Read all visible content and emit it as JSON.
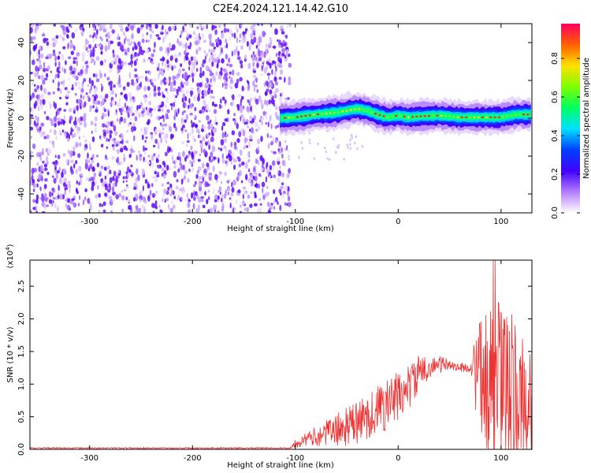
{
  "title": "C2E4.2024.121.14.42.G10",
  "chart_data": [
    {
      "type": "heatmap",
      "xlabel": "Height of straight line (km)",
      "ylabel": "Frequency (Hz)",
      "xlim": [
        -358,
        130
      ],
      "ylim": [
        -50,
        50
      ],
      "x_ticks": [
        -300,
        -200,
        -100,
        0,
        100
      ],
      "y_ticks": [
        -40,
        -20,
        0,
        20,
        40
      ],
      "colorbar": {
        "label": "Normalized spectral amplitude",
        "range": [
          0,
          0.98
        ],
        "ticks": [
          "0.0",
          "0.2",
          "0.4",
          "0.6",
          "0.8"
        ],
        "tick_values": [
          0.0,
          0.2,
          0.4,
          0.6,
          0.8
        ],
        "colormap": [
          "#ffffff",
          "#b57cff",
          "#4000ff",
          "#0040ff",
          "#00e0ff",
          "#00ff60",
          "#7fff00",
          "#ffe000",
          "#ff6000",
          "#ff0060"
        ]
      },
      "noise_region_x": [
        -358,
        -105
      ],
      "ridge": {
        "x": [
          -115,
          -100,
          -80,
          -60,
          -40,
          -30,
          -20,
          -10,
          0,
          10,
          20,
          40,
          60,
          80,
          100,
          115,
          130
        ],
        "frequency_hz": [
          0,
          0.5,
          2,
          3,
          5,
          4,
          2,
          0.5,
          1.5,
          0.5,
          1,
          1.5,
          0.5,
          0.5,
          0.5,
          2,
          2
        ]
      },
      "grid": false
    },
    {
      "type": "line",
      "xlabel": "Height of straight line (km)",
      "ylabel": "SNR (10 * v/v)",
      "y_multiplier_label": "(x10",
      "y_multiplier_exp": "4",
      "y_multiplier_close": ")",
      "xlim": [
        -358,
        130
      ],
      "ylim": [
        0,
        2.9
      ],
      "x_ticks": [
        -300,
        -200,
        -100,
        0,
        100
      ],
      "y_ticks": [
        "0.0",
        "0.5",
        "1.0",
        "1.5",
        "2.0",
        "2.5"
      ],
      "y_tick_values": [
        0,
        0.5,
        1.0,
        1.5,
        2.0,
        2.5
      ],
      "series": [
        {
          "color": "#ee3333",
          "x": [
            -358,
            -300,
            -200,
            -105,
            -100,
            -90,
            -80,
            -70,
            -60,
            -50,
            -40,
            -30,
            -20,
            -10,
            0,
            10,
            20,
            30,
            40,
            50,
            60,
            70,
            75,
            80,
            90,
            95,
            100,
            110,
            120,
            130
          ],
          "y_mean": [
            0.02,
            0.02,
            0.02,
            0.02,
            0.1,
            0.15,
            0.2,
            0.25,
            0.3,
            0.35,
            0.4,
            0.5,
            0.6,
            0.7,
            0.8,
            0.95,
            1.15,
            1.25,
            1.3,
            1.3,
            1.25,
            1.25,
            1.2,
            1.1,
            1.0,
            1.0,
            0.9,
            0.8,
            0.7,
            0.6
          ],
          "y_spread": [
            0.01,
            0.01,
            0.01,
            0.01,
            0.08,
            0.1,
            0.15,
            0.2,
            0.25,
            0.3,
            0.35,
            0.35,
            0.4,
            0.4,
            0.4,
            0.35,
            0.3,
            0.15,
            0.15,
            0.07,
            0.07,
            0.07,
            0.6,
            0.9,
            1.2,
            1.3,
            1.4,
            1.3,
            1.1,
            1.0
          ],
          "y_peak": 2.9
        }
      ],
      "grid": false
    }
  ]
}
